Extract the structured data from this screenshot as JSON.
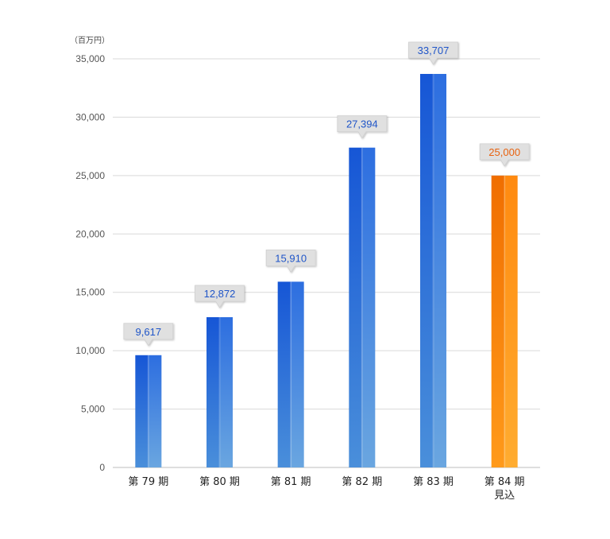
{
  "chart_data": {
    "type": "bar",
    "unit_label": "（百万円）",
    "categories": [
      "第 79 期",
      "第 80 期",
      "第 81 期",
      "第 82 期",
      "第 83 期",
      "第 84 期\n見込"
    ],
    "values": [
      9617,
      12872,
      15910,
      27394,
      33707,
      25000
    ],
    "value_labels": [
      "9,617",
      "12,872",
      "15,910",
      "27,394",
      "33,707",
      "25,000"
    ],
    "highlight_index": 5,
    "ylim": [
      0,
      35000
    ],
    "yticks": [
      0,
      5000,
      10000,
      15000,
      20000,
      25000,
      30000,
      35000
    ],
    "ytick_labels": [
      "0",
      "5,000",
      "10,000",
      "15,000",
      "20,000",
      "25,000",
      "30,000",
      "35,000"
    ],
    "grid": true,
    "colors": {
      "bar_blue_dark": "#1656d6",
      "bar_blue_light": "#5f9bd8",
      "bar_orange_dark": "#f06e00",
      "bar_orange_light": "#ffa422",
      "label_blue_text": "#1f55c8",
      "label_orange_text": "#e8620f",
      "callout_bg": "#e0e0e0",
      "grid": "#d9d9d9",
      "axis_text": "#555555"
    }
  }
}
